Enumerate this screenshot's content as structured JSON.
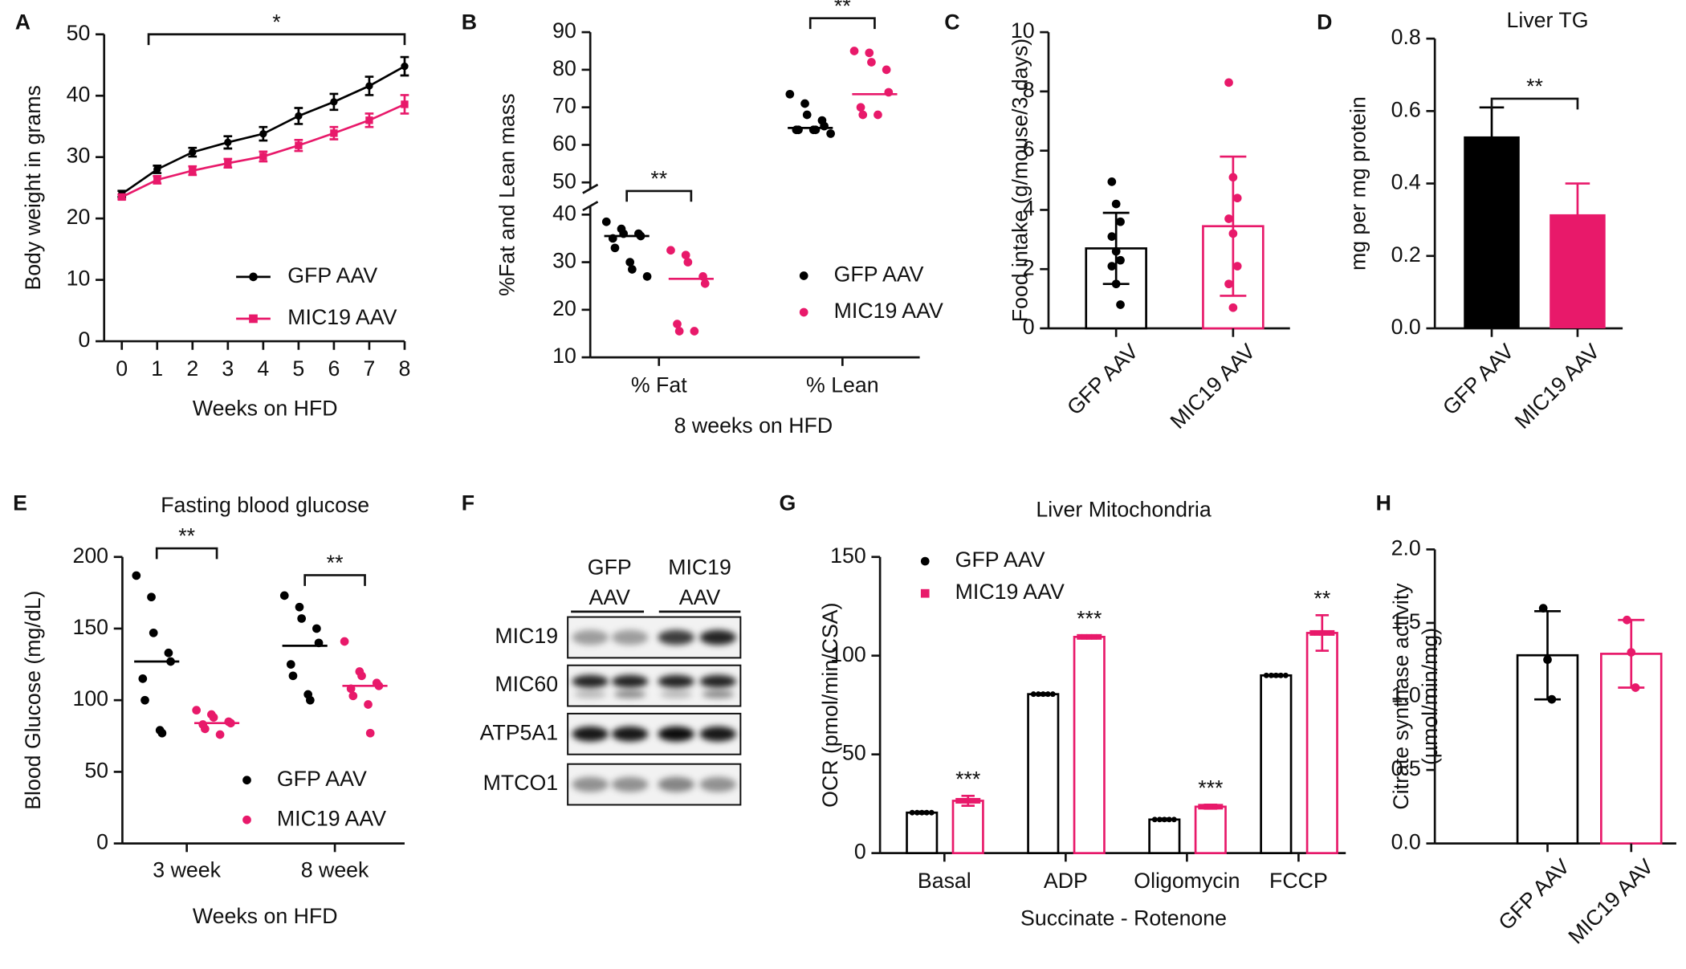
{
  "chart_data": [
    {
      "panel": "A",
      "type": "line",
      "ylabel": "Body weight in grams",
      "xlabel": "Weeks on HFD",
      "x": [
        0,
        1,
        2,
        3,
        4,
        5,
        6,
        7,
        8
      ],
      "xlim": [
        -0.5,
        8
      ],
      "xticks": [
        0,
        1,
        2,
        3,
        4,
        5,
        6,
        7,
        8
      ],
      "ylim": [
        0,
        50
      ],
      "yticks": [
        0,
        10,
        20,
        30,
        40,
        50
      ],
      "significance": "*",
      "series": [
        {
          "name": "GFP AAV",
          "color": "#000000",
          "marker": "circle",
          "values": [
            24,
            28,
            30.8,
            32.4,
            33.8,
            36.7,
            39,
            41.6,
            44.8
          ],
          "errors": [
            0.5,
            0.6,
            0.7,
            1,
            1.1,
            1.3,
            1.3,
            1.5,
            1.5
          ]
        },
        {
          "name": "MIC19 AAV",
          "color": "#e8196a",
          "marker": "square",
          "values": [
            23.5,
            26.3,
            27.8,
            29,
            30.1,
            31.9,
            33.9,
            36,
            38.6
          ],
          "errors": [
            0.4,
            0.6,
            0.7,
            0.7,
            0.8,
            0.9,
            1,
            1.1,
            1.5
          ]
        }
      ]
    },
    {
      "panel": "B",
      "type": "dot",
      "ylabel": "%Fat and Lean mass",
      "xlabel": "8 weeks on HFD",
      "categories": [
        "% Fat",
        "% Lean"
      ],
      "ylim": [
        10,
        90
      ],
      "axis_break": [
        40,
        50
      ],
      "yticks": [
        10,
        20,
        30,
        40,
        50,
        60,
        70,
        80,
        90
      ],
      "significance": [
        "**",
        "**"
      ],
      "series": [
        {
          "name": "GFP AAV",
          "color": "#000000",
          "points": [
            [
              38.5,
              37,
              36,
              36,
              35.5,
              35,
              33,
              30,
              28.5,
              27
            ],
            [
              73.5,
              71,
              68,
              66.5,
              65,
              64,
              64,
              64,
              64,
              63
            ]
          ],
          "means": [
            35.5,
            64.5
          ]
        },
        {
          "name": "MIC19 AAV",
          "color": "#e8196a",
          "points": [
            [
              32.5,
              31.5,
              30,
              27,
              25.5,
              17,
              15.5,
              15.5
            ],
            [
              85,
              84.5,
              82,
              80,
              74,
              70,
              68,
              68
            ]
          ],
          "means": [
            26.5,
            73.5
          ]
        }
      ]
    },
    {
      "panel": "C",
      "type": "bar",
      "ylabel": "Food intake (g/mouse/3 days)",
      "filled": false,
      "categories": [
        "GFP AAV",
        "MIC19 AAV"
      ],
      "colors": [
        "#000000",
        "#e8196a"
      ],
      "values": [
        2.7,
        3.45
      ],
      "errors": [
        1.2,
        2.35
      ],
      "points": [
        [
          4.95,
          4.2,
          3.6,
          3.1,
          2.6,
          2.3,
          2.1,
          1.5,
          0.8
        ],
        [
          8.3,
          5.1,
          4.4,
          3.7,
          3.2,
          2.1,
          1.5,
          0.7
        ]
      ],
      "ylim": [
        0,
        10
      ],
      "yticks": [
        0,
        2,
        4,
        6,
        8,
        10
      ]
    },
    {
      "panel": "D",
      "type": "bar",
      "title": "Liver TG",
      "ylabel": "mg per mg protein",
      "filled": true,
      "categories": [
        "GFP AAV",
        "MIC19 AAV"
      ],
      "colors": [
        "#000000",
        "#e8196a"
      ],
      "values": [
        0.53,
        0.315
      ],
      "errors": [
        0.08,
        0.085
      ],
      "significance": "**",
      "ylim": [
        0,
        0.8
      ],
      "yticks": [
        {
          "value": 0,
          "label": "0.0"
        },
        0.2,
        0.4,
        0.6,
        0.8
      ]
    },
    {
      "panel": "E",
      "type": "dot",
      "title": "Fasting blood glucose",
      "ylabel": "Blood Glucose (mg/dL)",
      "xlabel": "Weeks on HFD",
      "categories": [
        "3 week",
        "8 week"
      ],
      "ylim": [
        0,
        200
      ],
      "yticks": [
        0,
        50,
        100,
        150,
        200
      ],
      "significance": [
        "**",
        "**"
      ],
      "series": [
        {
          "name": "GFP AAV",
          "color": "#000000",
          "points": [
            [
              187,
              172,
              147,
              133,
              127,
              115,
              100,
              79,
              77
            ],
            [
              173,
              165,
              157,
              150,
              140,
              125,
              117,
              104,
              100
            ]
          ],
          "means": [
            127,
            138
          ]
        },
        {
          "name": "MIC19 AAV",
          "color": "#e8196a",
          "points": [
            [
              93,
              90,
              88,
              85,
              84,
              83,
              80,
              76
            ],
            [
              141,
              120,
              117,
              112,
              110,
              108,
              103,
              97,
              77
            ]
          ],
          "means": [
            84,
            110
          ]
        }
      ]
    },
    {
      "panel": "G",
      "type": "bar",
      "title": "Liver Mitochondria",
      "ylabel": "OCR (pmol/min/CSA)",
      "xlabel": "Succinate - Rotenone",
      "filled": false,
      "categories": [
        "Basal",
        "ADP",
        "Oligomycin",
        "FCCP"
      ],
      "ylim": [
        0,
        150
      ],
      "yticks": [
        0,
        50,
        100,
        150
      ],
      "series": [
        {
          "name": "GFP AAV",
          "color": "#000000",
          "marker": "circle",
          "values": [
            20.5,
            80.5,
            17,
            90
          ],
          "errors": [
            0.5,
            0.5,
            0.5,
            0.5
          ]
        },
        {
          "name": "MIC19 AAV",
          "color": "#e8196a",
          "marker": "square",
          "values": [
            26.5,
            109.5,
            23.5,
            111.5
          ],
          "errors": [
            2.5,
            0.8,
            1,
            9
          ],
          "significance": [
            "***",
            "***",
            "***",
            "**"
          ]
        }
      ]
    },
    {
      "panel": "H",
      "type": "bar",
      "ylabel": [
        "Citrate synthase activity",
        "(µmol/min/mg)"
      ],
      "filled": false,
      "categories": [
        "GFP AAV",
        "MIC19 AAV"
      ],
      "colors": [
        "#000000",
        "#e8196a"
      ],
      "values": [
        1.28,
        1.29
      ],
      "errors": [
        0.3,
        0.23
      ],
      "points": [
        [
          1.6,
          1.25,
          0.98
        ],
        [
          1.52,
          1.3,
          1.06
        ]
      ],
      "ylim": [
        0,
        2
      ],
      "yticks": [
        {
          "value": 0,
          "label": "0.0"
        },
        0.5,
        {
          "value": 1,
          "label": "1.0"
        },
        1.5,
        {
          "value": 2,
          "label": "2.0"
        }
      ]
    }
  ],
  "blot": {
    "panel": "F",
    "columns": [
      [
        "GFP",
        "AAV"
      ],
      [
        "MIC19",
        "AAV"
      ]
    ],
    "rows": [
      "MIC19",
      "MIC60",
      "ATP5A1",
      "MTCO1"
    ]
  }
}
